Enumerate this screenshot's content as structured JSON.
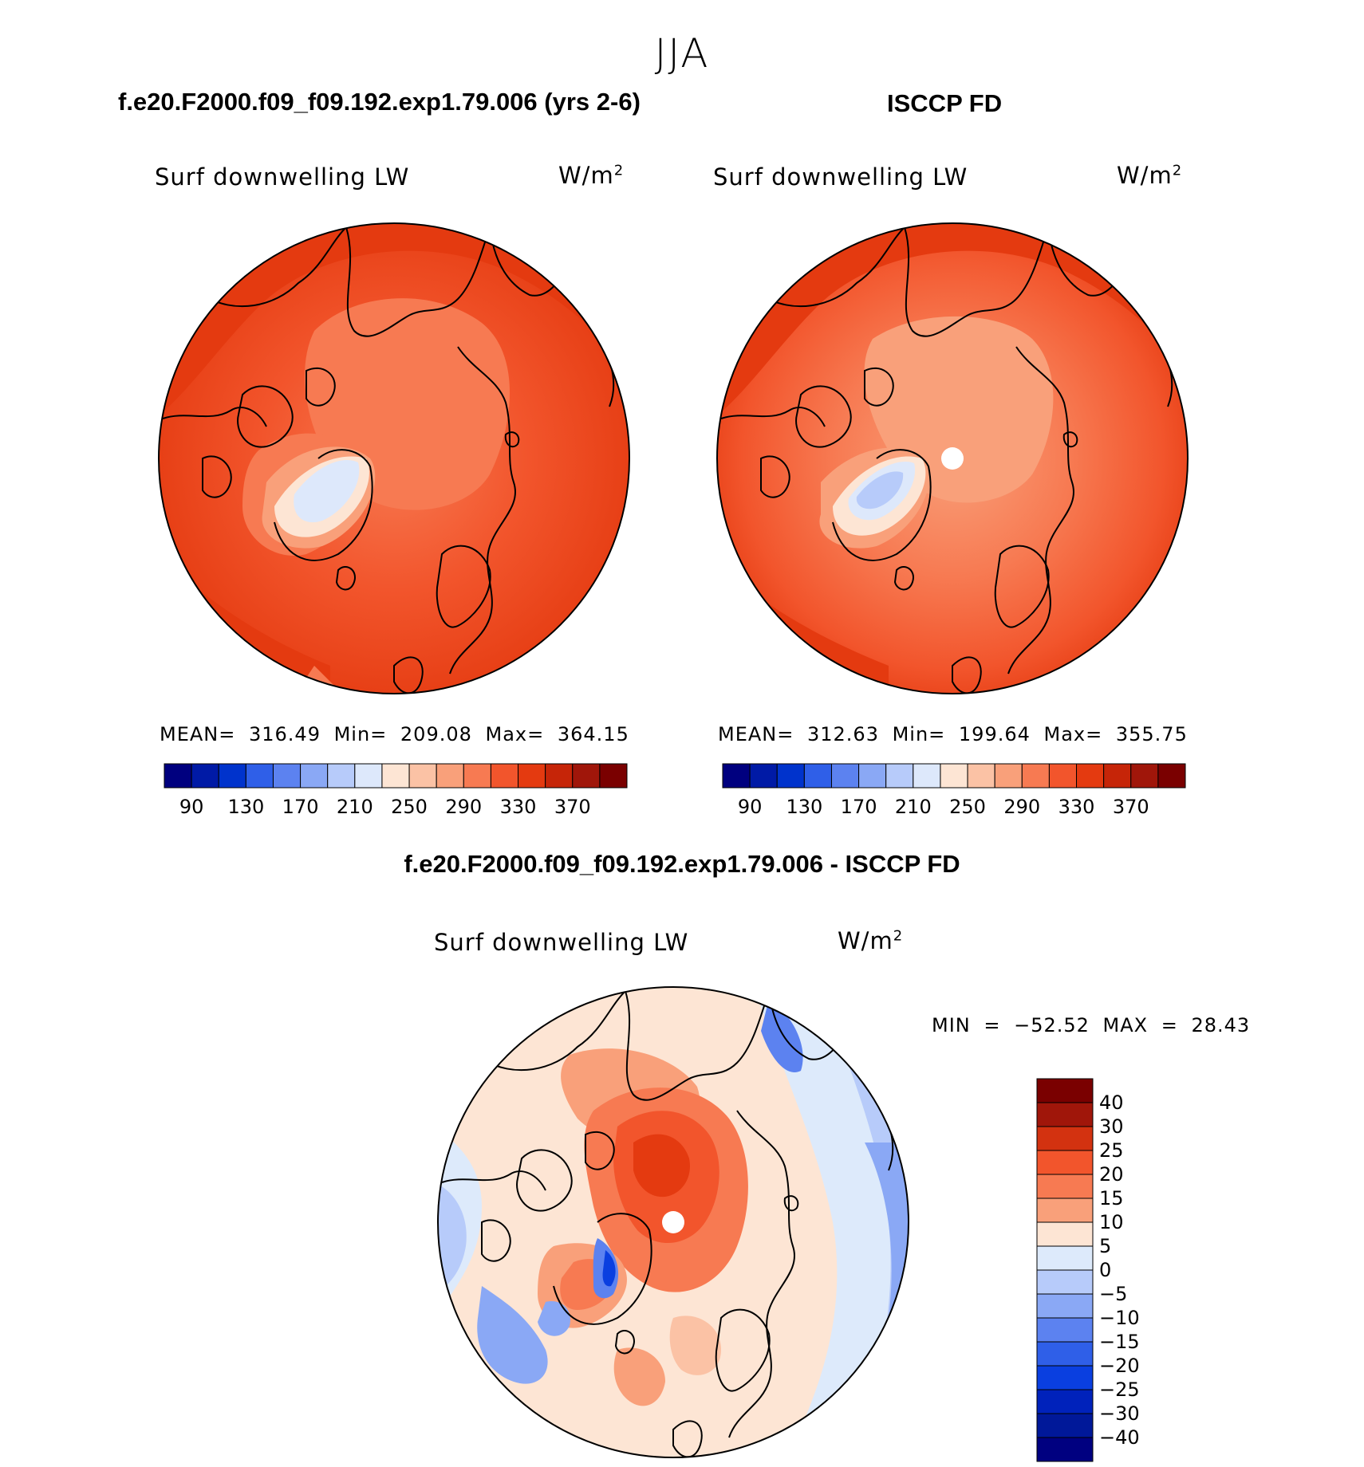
{
  "season": "JJA",
  "panels": [
    {
      "title": "f.e20.F2000.f09_f09.192.exp1.79.006 (yrs 2-6)",
      "variable": "Surf downwelling LW",
      "units": "W/m",
      "units_exp": "2",
      "stats": "MEAN= 316.49   Min= 209.08   Max= 364.15"
    },
    {
      "title": "ISCCP FD",
      "variable": "Surf downwelling LW",
      "units": "W/m",
      "units_exp": "2",
      "stats": "MEAN= 312.63   Min= 199.64   Max= 355.75"
    },
    {
      "title": "f.e20.F2000.f09_f09.192.exp1.79.006 - ISCCP FD",
      "variable": "Surf downwelling LW",
      "units": "W/m",
      "units_exp": "2",
      "stats": "MIN = −52.52 MAX =   28.43"
    }
  ],
  "chart_data": [
    {
      "type": "contour-map",
      "projection": "north polar stereographic",
      "title": "f.e20.F2000.f09_f09.192.exp1.79.006 (yrs 2-6)",
      "variable": "Surf downwelling LW",
      "units": "W/m2",
      "mean": 316.49,
      "min": 209.08,
      "max": 364.15,
      "colorbar_ticks": [
        "90",
        "130",
        "170",
        "210",
        "250",
        "290",
        "330",
        "370"
      ],
      "colorbar_colors": [
        "#00007f",
        "#001aa6",
        "#0033cc",
        "#2f5fe8",
        "#5c82f0",
        "#8aa8f5",
        "#b7cbfa",
        "#dde8fb",
        "#fde5d4",
        "#fbc2a5",
        "#f9a07a",
        "#f77a52",
        "#f2552c",
        "#e43a10",
        "#c62508",
        "#a0160a",
        "#7a0000"
      ]
    },
    {
      "type": "contour-map",
      "projection": "north polar stereographic",
      "title": "ISCCP FD",
      "variable": "Surf downwelling LW",
      "units": "W/m2",
      "mean": 312.63,
      "min": 199.64,
      "max": 355.75,
      "colorbar_ticks": [
        "90",
        "130",
        "170",
        "210",
        "250",
        "290",
        "330",
        "370"
      ],
      "colorbar_colors": [
        "#00007f",
        "#001aa6",
        "#0033cc",
        "#2f5fe8",
        "#5c82f0",
        "#8aa8f5",
        "#b7cbfa",
        "#dde8fb",
        "#fde5d4",
        "#fbc2a5",
        "#f9a07a",
        "#f77a52",
        "#f2552c",
        "#e43a10",
        "#c62508",
        "#a0160a",
        "#7a0000"
      ]
    },
    {
      "type": "contour-map",
      "projection": "north polar stereographic",
      "title": "f.e20.F2000.f09_f09.192.exp1.79.006 - ISCCP FD",
      "variable": "Surf downwelling LW",
      "units": "W/m2",
      "min": -52.52,
      "max": 28.43,
      "colorbar_ticks": [
        "40",
        "30",
        "25",
        "20",
        "15",
        "10",
        "5",
        "0",
        "−5",
        "−10",
        "−15",
        "−20",
        "−25",
        "−30",
        "−40"
      ],
      "colorbar_colors": [
        "#7a0000",
        "#a0160a",
        "#d33210",
        "#f2552c",
        "#f77a52",
        "#f9a07a",
        "#fde5d4",
        "#ddeafb",
        "#b7cbfa",
        "#8aa8f5",
        "#5c82f0",
        "#2f5fe8",
        "#0a3fe0",
        "#0022bb",
        "#001899",
        "#000080"
      ]
    }
  ]
}
